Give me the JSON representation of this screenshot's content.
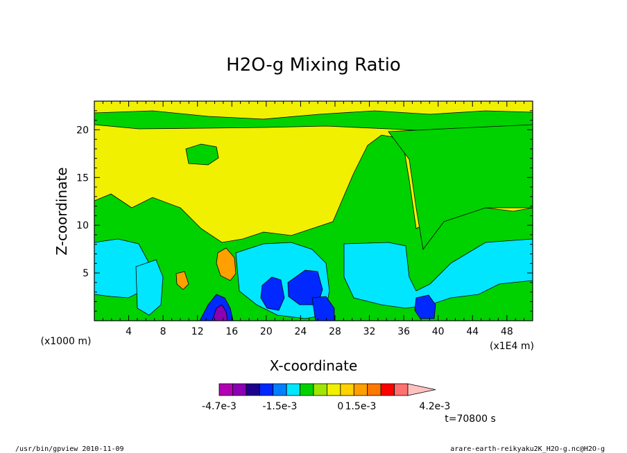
{
  "chart_data": {
    "type": "heatmap",
    "title": "H2O-g Mixing Ratio",
    "xlabel": "X-coordinate",
    "ylabel": "Z-coordinate",
    "x_unit_left": "(x1000 m)",
    "x_unit_right": "(x1E4 m)",
    "xlim": [
      0,
      51
    ],
    "ylim": [
      0,
      23
    ],
    "x_ticks": [
      4,
      8,
      12,
      16,
      20,
      24,
      28,
      32,
      36,
      40,
      44,
      48
    ],
    "y_ticks": [
      5,
      10,
      15,
      20
    ],
    "colorbar": {
      "levels": [
        -0.0047,
        -0.0042,
        -0.0037,
        -0.0031,
        -0.0026,
        -0.0021,
        -0.0015,
        -0.001,
        -0.0005,
        0.0,
        0.0005,
        0.001,
        0.0015,
        0.0021,
        0.0026,
        0.0031,
        0.0037,
        0.0042
      ],
      "labels": [
        "-4.7e-3",
        "-1.5e-3",
        "0",
        "1.5e-3",
        "4.2e-3"
      ],
      "colors": [
        "#b400b4",
        "#8c00b4",
        "#1e008c",
        "#0028ff",
        "#0080ff",
        "#00e6ff",
        "#00d200",
        "#a0e600",
        "#f0f000",
        "#ffd200",
        "#ffa000",
        "#ff7800",
        "#ff0000",
        "#ff7070",
        "#ffc0c0"
      ]
    },
    "regions": {
      "background": "#f0f000",
      "green": "#00d200",
      "cyan": "#00e6ff",
      "blue": "#0028ff",
      "orange": "#ffa000",
      "purple": "#8c00b4"
    }
  },
  "footer": {
    "time": "t=70800 s",
    "left_note": "/usr/bin/gpview  2010-11-09",
    "right_note": "arare-earth-reikyaku2K_H2O-g.nc@H2O-g"
  }
}
